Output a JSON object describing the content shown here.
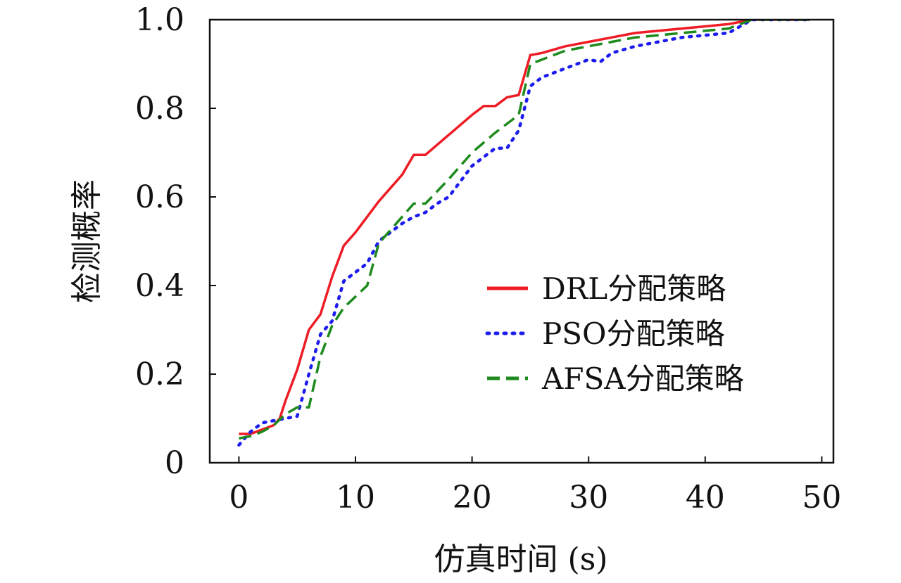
{
  "chart_data": {
    "type": "line",
    "xlabel": "仿真时间 (s)",
    "ylabel": "检测概率",
    "xlim": [
      -2.5,
      51
    ],
    "ylim": [
      0,
      1.0
    ],
    "x_ticks": [
      0,
      10,
      20,
      30,
      40,
      50
    ],
    "y_ticks": [
      0,
      0.2,
      0.4,
      0.6,
      0.8,
      1.0
    ],
    "x_tick_labels": [
      "0",
      "10",
      "20",
      "30",
      "40",
      "50"
    ],
    "y_tick_labels": [
      "0",
      "0.2",
      "0.4",
      "0.6",
      "0.8",
      "1.0"
    ],
    "grid": false,
    "legend_position": "lower-right",
    "series": [
      {
        "name": "DRL分配策略",
        "color": "#ee1c25",
        "style": "solid",
        "x": [
          0,
          1,
          2,
          3,
          3.5,
          4,
          5,
          6,
          7,
          8,
          9,
          10,
          12,
          14,
          15,
          16,
          18,
          20,
          21,
          22,
          23,
          24,
          25,
          26,
          28,
          30,
          32,
          34,
          36,
          38,
          40,
          42,
          44,
          46,
          49
        ],
        "y": [
          0.065,
          0.065,
          0.075,
          0.085,
          0.1,
          0.14,
          0.21,
          0.3,
          0.335,
          0.42,
          0.49,
          0.52,
          0.59,
          0.65,
          0.695,
          0.695,
          0.74,
          0.785,
          0.805,
          0.805,
          0.825,
          0.83,
          0.92,
          0.925,
          0.94,
          0.95,
          0.96,
          0.97,
          0.975,
          0.98,
          0.985,
          0.99,
          1.0,
          1.0,
          1.0
        ]
      },
      {
        "name": "PSO分配策略",
        "color": "#1c1cee",
        "style": "dotted",
        "x": [
          0,
          1,
          2,
          3,
          4,
          5,
          6,
          7,
          8,
          9,
          10,
          11,
          12,
          14,
          15,
          16,
          17,
          18,
          20,
          21,
          22,
          23,
          24,
          25,
          26,
          28,
          30,
          31,
          32,
          34,
          36,
          38,
          40,
          42,
          44,
          46,
          49
        ],
        "y": [
          0.04,
          0.07,
          0.09,
          0.095,
          0.1,
          0.105,
          0.2,
          0.29,
          0.32,
          0.41,
          0.43,
          0.45,
          0.5,
          0.54,
          0.555,
          0.565,
          0.585,
          0.6,
          0.67,
          0.69,
          0.71,
          0.71,
          0.75,
          0.85,
          0.87,
          0.89,
          0.91,
          0.905,
          0.925,
          0.94,
          0.95,
          0.96,
          0.965,
          0.97,
          1.0,
          1.0,
          1.0
        ]
      },
      {
        "name": "AFSA分配策略",
        "color": "#1e8a1e",
        "style": "dashed",
        "x": [
          0,
          1,
          2,
          3,
          4,
          5,
          6,
          7,
          8,
          9,
          10,
          11,
          12,
          14,
          15,
          16,
          18,
          20,
          22,
          24,
          25,
          26,
          28,
          30,
          32,
          34,
          36,
          38,
          40,
          42,
          44,
          46,
          49
        ],
        "y": [
          0.055,
          0.06,
          0.07,
          0.085,
          0.11,
          0.125,
          0.125,
          0.24,
          0.31,
          0.35,
          0.375,
          0.4,
          0.495,
          0.555,
          0.585,
          0.585,
          0.64,
          0.7,
          0.745,
          0.785,
          0.9,
          0.91,
          0.93,
          0.94,
          0.95,
          0.96,
          0.965,
          0.97,
          0.975,
          0.98,
          1.0,
          1.0,
          1.0
        ]
      }
    ]
  }
}
